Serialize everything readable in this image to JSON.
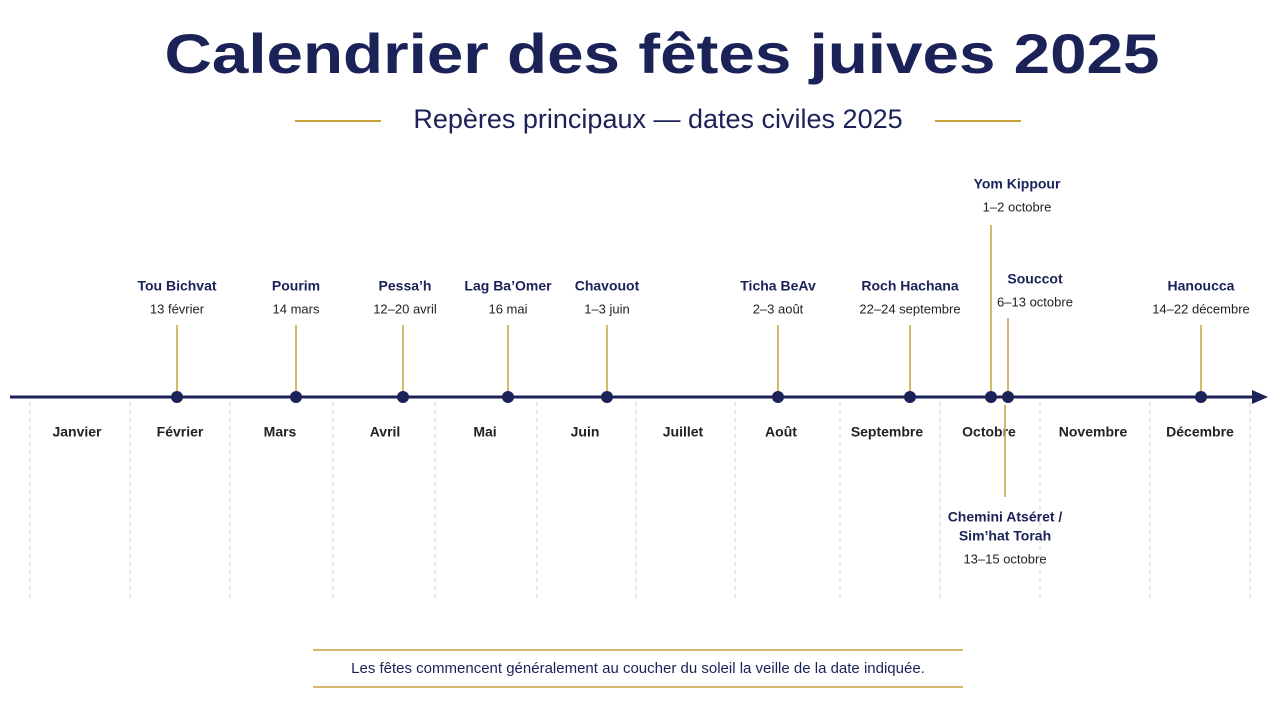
{
  "header": {
    "title": "Calendrier des fêtes juives 2025",
    "subtitle": "Repères principaux — dates civiles 2025"
  },
  "months": [
    "Janvier",
    "Février",
    "Mars",
    "Avril",
    "Mai",
    "Juin",
    "Juillet",
    "Août",
    "Septembre",
    "Octobre",
    "Novembre",
    "Décembre"
  ],
  "events": [
    {
      "name": [
        "Tou Bichvat"
      ],
      "date": "13 février"
    },
    {
      "name": [
        "Pourim"
      ],
      "date": "14 mars"
    },
    {
      "name": [
        "Pessa’h"
      ],
      "date": "12–20 avril"
    },
    {
      "name": [
        "Lag Ba’Omer"
      ],
      "date": "16 mai"
    },
    {
      "name": [
        "Chavouot"
      ],
      "date": "1–3 juin"
    },
    {
      "name": [
        "Ticha BeAv"
      ],
      "date": "2–3 août"
    },
    {
      "name": [
        "Roch Hachana"
      ],
      "date": "22–24 septembre"
    },
    {
      "name": [
        "Yom Kippour"
      ],
      "date": "1–2 octobre"
    },
    {
      "name": [
        "Souccot"
      ],
      "date": "6–13 octobre"
    },
    {
      "name": [
        "Hanoucca"
      ],
      "date": "14–22 décembre"
    },
    {
      "name": [
        "Chemini Atséret /",
        "Sim’hat Torah"
      ],
      "date": "13–15 octobre"
    }
  ],
  "footnote": "Les fêtes commencent généralement au coucher du soleil la veille de la date indiquée."
}
